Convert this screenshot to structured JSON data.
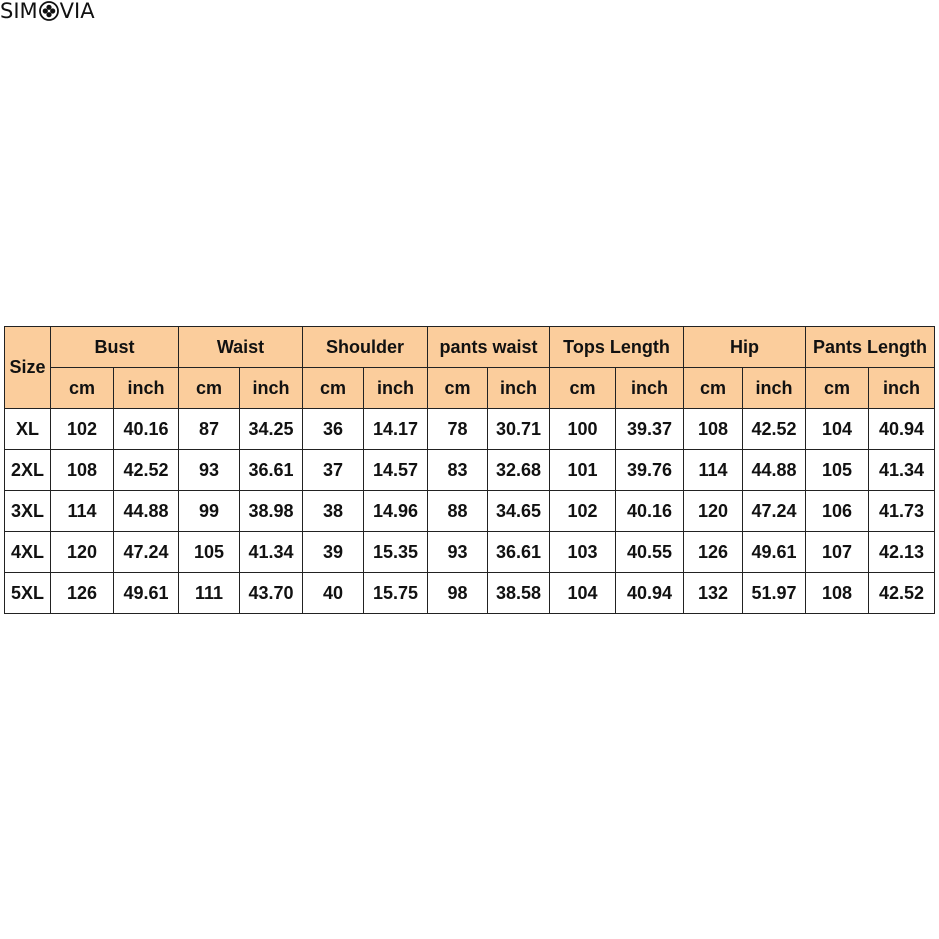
{
  "brand": {
    "logo_text": "SIMOVIA"
  },
  "size_chart": {
    "size_header": "Size",
    "groups": [
      "Bust",
      "Waist",
      "Shoulder",
      "pants waist",
      "Tops Length",
      "Hip",
      "Pants Length"
    ],
    "unit_labels": {
      "cm": "cm",
      "inch": "inch"
    },
    "rows": [
      {
        "size": "XL",
        "values": [
          "102",
          "40.16",
          "87",
          "34.25",
          "36",
          "14.17",
          "78",
          "30.71",
          "100",
          "39.37",
          "108",
          "42.52",
          "104",
          "40.94"
        ]
      },
      {
        "size": "2XL",
        "values": [
          "108",
          "42.52",
          "93",
          "36.61",
          "37",
          "14.57",
          "83",
          "32.68",
          "101",
          "39.76",
          "114",
          "44.88",
          "105",
          "41.34"
        ]
      },
      {
        "size": "3XL",
        "values": [
          "114",
          "44.88",
          "99",
          "38.98",
          "38",
          "14.96",
          "88",
          "34.65",
          "102",
          "40.16",
          "120",
          "47.24",
          "106",
          "41.73"
        ]
      },
      {
        "size": "4XL",
        "values": [
          "120",
          "47.24",
          "105",
          "41.34",
          "39",
          "15.35",
          "93",
          "36.61",
          "103",
          "40.55",
          "126",
          "49.61",
          "107",
          "42.13"
        ]
      },
      {
        "size": "5XL",
        "values": [
          "126",
          "49.61",
          "111",
          "43.70",
          "40",
          "15.75",
          "98",
          "38.58",
          "104",
          "40.94",
          "132",
          "51.97",
          "108",
          "42.52"
        ]
      }
    ]
  },
  "colors": {
    "header_bg": "#fbcd9c",
    "border": "#222222"
  }
}
